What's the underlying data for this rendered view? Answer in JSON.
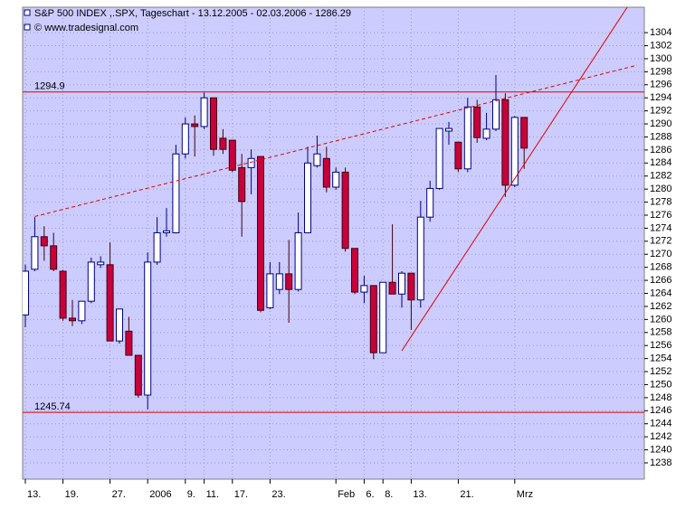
{
  "chart_data": {
    "type": "candlestick",
    "title": "S&P 500 INDEX ,.SPX, Tageschart - 13.12.2005 - 02.03.2006 - 1286.29",
    "subtitle": "© www.tradesignal.com",
    "categories": [
      "13.",
      null,
      null,
      null,
      "19.",
      null,
      null,
      null,
      null,
      "27.",
      null,
      null,
      null,
      "2006",
      null,
      null,
      null,
      "9.",
      null,
      "11.",
      null,
      null,
      "17.",
      null,
      null,
      null,
      "23.",
      null,
      null,
      null,
      null,
      null,
      null,
      "Feb",
      null,
      null,
      "6.",
      null,
      "8.",
      null,
      null,
      "13.",
      null,
      null,
      null,
      null,
      "21.",
      null,
      null,
      null,
      null,
      null,
      "Mrz",
      null
    ],
    "open": [
      1260.7,
      1267.7,
      1272.7,
      1271.3,
      1267.4,
      1260.2,
      1259.8,
      1262.8,
      1268.4,
      1268.4,
      1256.7,
      1258.2,
      1254.5,
      1248.4,
      1268.8,
      1273.3,
      1273.3,
      1285.4,
      1290.0,
      1289.6,
      1294.0,
      1287.8,
      1287.5,
      1283.3,
      1283.3,
      1285.0,
      1261.8,
      1264.6,
      1267.0,
      1264.6,
      1273.3,
      1283.6,
      1284.7,
      1280.3,
      1282.6,
      1270.9,
      1264.2,
      1265.2,
      1254.9,
      1265.7,
      1263.9,
      1267.1,
      1263.0,
      1275.7,
      1280.1,
      1288.9,
      1287.2,
      1283.1,
      1292.6,
      1287.8,
      1289.2,
      1293.7,
      1280.6,
      1291.0
    ],
    "high": [
      1268.4,
      1275.7,
      1274.3,
      1273.3,
      1267.6,
      1263.0,
      1262.8,
      1269.5,
      1269.7,
      1271.8,
      1261.6,
      1260.4,
      1254.5,
      1270.3,
      1275.7,
      1277.1,
      1286.8,
      1291.0,
      1291.3,
      1294.8,
      1294.0,
      1289.2,
      1287.5,
      1285.4,
      1286.1,
      1285.0,
      1268.8,
      1268.8,
      1272.2,
      1276.4,
      1286.5,
      1288.2,
      1286.5,
      1283.3,
      1283.3,
      1270.9,
      1266.7,
      1265.2,
      1265.7,
      1274.6,
      1267.4,
      1267.1,
      1278.2,
      1281.3,
      1289.3,
      1290.3,
      1287.2,
      1294.0,
      1293.7,
      1291.7,
      1297.5,
      1294.7,
      1291.2,
      1291.0
    ],
    "low": [
      1258.8,
      1267.4,
      1269.0,
      1267.4,
      1259.8,
      1259.0,
      1259.3,
      1262.5,
      1267.9,
      1256.7,
      1256.3,
      1254.5,
      1248.0,
      1246.2,
      1268.4,
      1272.7,
      1273.2,
      1284.7,
      1285.0,
      1289.2,
      1285.1,
      1285.4,
      1282.6,
      1272.7,
      1279.2,
      1261.1,
      1261.6,
      1263.9,
      1259.5,
      1264.3,
      1273.3,
      1283.3,
      1279.5,
      1279.9,
      1270.4,
      1263.9,
      1262.5,
      1253.9,
      1254.9,
      1263.9,
      1261.8,
      1258.4,
      1261.8,
      1275.0,
      1279.9,
      1286.8,
      1282.6,
      1282.6,
      1287.1,
      1287.5,
      1288.9,
      1278.8,
      1280.3,
      1283.1
    ],
    "close": [
      1267.4,
      1272.7,
      1271.3,
      1267.7,
      1260.2,
      1259.8,
      1262.8,
      1268.8,
      1268.8,
      1256.7,
      1261.6,
      1254.5,
      1248.4,
      1268.8,
      1273.3,
      1273.6,
      1285.4,
      1290.0,
      1289.6,
      1294.0,
      1286.1,
      1286.1,
      1282.9,
      1278.1,
      1284.7,
      1261.4,
      1267.0,
      1267.0,
      1264.6,
      1273.3,
      1284.0,
      1285.4,
      1280.3,
      1282.6,
      1270.9,
      1264.2,
      1265.2,
      1254.9,
      1265.7,
      1263.9,
      1267.1,
      1263.0,
      1275.7,
      1280.1,
      1289.3,
      1289.3,
      1283.1,
      1292.6,
      1287.9,
      1289.2,
      1293.7,
      1280.6,
      1291.0,
      1286.29
    ],
    "up_color": "#ffffff",
    "down_color": "#c8003c",
    "ylim": [
      1235.5,
      1307.9
    ],
    "yticks": [
      1238,
      1240,
      1242,
      1244,
      1246,
      1248,
      1250,
      1252,
      1254,
      1256,
      1258,
      1260,
      1262,
      1264,
      1266,
      1268,
      1270,
      1272,
      1274,
      1276,
      1278,
      1280,
      1282,
      1284,
      1286,
      1288,
      1290,
      1292,
      1294,
      1296,
      1298,
      1300,
      1302,
      1304
    ],
    "grid": true,
    "hlines": [
      {
        "value": 1294.9,
        "color": "#e00000"
      },
      {
        "value": 1245.74,
        "color": "#e00000"
      }
    ],
    "trendlines": [
      {
        "x": [
          1,
          65
        ],
        "values": [
          1275.8,
          1299.0
        ],
        "color": "#e00000",
        "style": "dashed"
      },
      {
        "x": [
          40,
          64
        ],
        "values": [
          1255.2,
          1308.0
        ],
        "color": "#e00000",
        "style": "solid"
      }
    ]
  }
}
